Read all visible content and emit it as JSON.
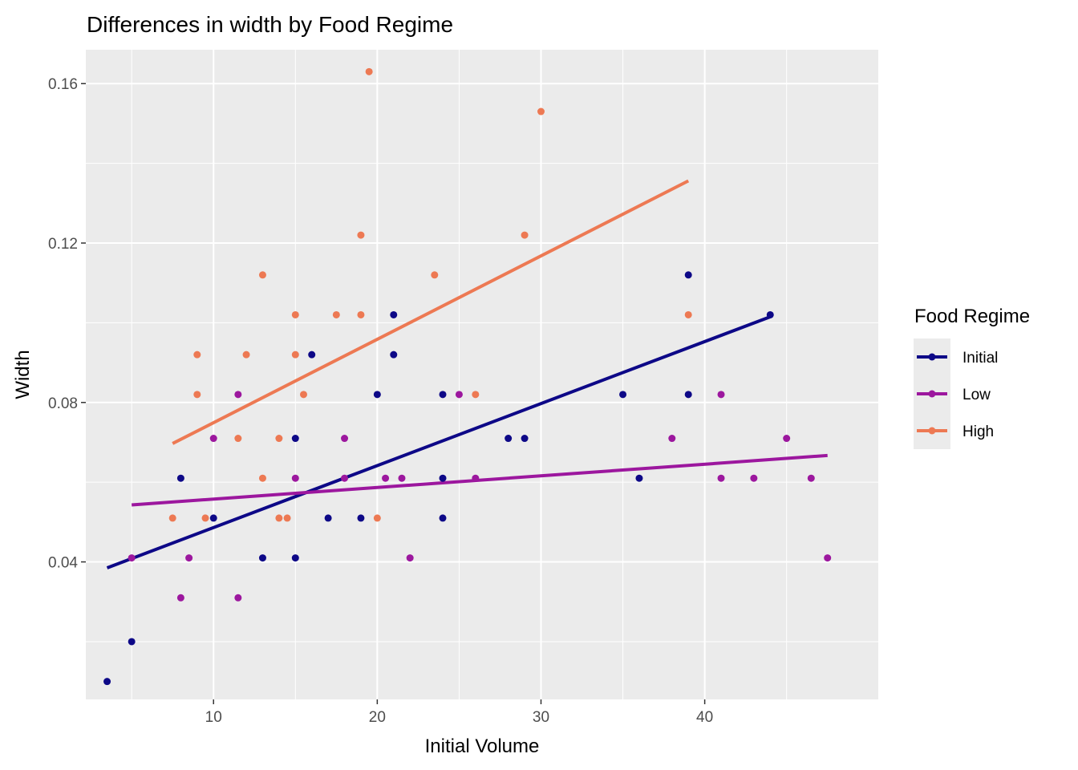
{
  "chart_data": {
    "type": "scatter",
    "title": "Differences in width by Food Regime",
    "xlabel": "Initial Volume",
    "ylabel": "Width",
    "xlim": [
      2.2,
      50.6
    ],
    "ylim": [
      0.0055,
      0.1685
    ],
    "x_ticks": [
      10,
      20,
      30,
      40
    ],
    "x_tick_labels": [
      "10",
      "20",
      "30",
      "40"
    ],
    "y_ticks": [
      0.04,
      0.08,
      0.12,
      0.16
    ],
    "y_tick_labels": [
      "0.04",
      "0.08",
      "0.12",
      "0.16"
    ],
    "grid": true,
    "legend": {
      "title": "Food Regime",
      "position": "right"
    },
    "series": [
      {
        "name": "Initial",
        "color": "#0d0887",
        "points": [
          {
            "x": 3.5,
            "y": 0.01
          },
          {
            "x": 5.0,
            "y": 0.02
          },
          {
            "x": 8.0,
            "y": 0.061
          },
          {
            "x": 10.0,
            "y": 0.051
          },
          {
            "x": 13.0,
            "y": 0.041
          },
          {
            "x": 15.0,
            "y": 0.071
          },
          {
            "x": 15.0,
            "y": 0.041
          },
          {
            "x": 16.0,
            "y": 0.092
          },
          {
            "x": 17.0,
            "y": 0.051
          },
          {
            "x": 19.0,
            "y": 0.051
          },
          {
            "x": 20.0,
            "y": 0.082
          },
          {
            "x": 21.0,
            "y": 0.102
          },
          {
            "x": 21.0,
            "y": 0.092
          },
          {
            "x": 24.0,
            "y": 0.082
          },
          {
            "x": 24.0,
            "y": 0.061
          },
          {
            "x": 24.0,
            "y": 0.051
          },
          {
            "x": 28.0,
            "y": 0.071
          },
          {
            "x": 29.0,
            "y": 0.071
          },
          {
            "x": 35.0,
            "y": 0.082
          },
          {
            "x": 36.0,
            "y": 0.061
          },
          {
            "x": 39.0,
            "y": 0.112
          },
          {
            "x": 39.0,
            "y": 0.082
          },
          {
            "x": 44.0,
            "y": 0.102
          }
        ],
        "fit": {
          "x": [
            3.5,
            44.0
          ],
          "y": [
            0.0385,
            0.1015
          ]
        }
      },
      {
        "name": "Low",
        "color": "#9c179e",
        "points": [
          {
            "x": 5.0,
            "y": 0.041
          },
          {
            "x": 8.0,
            "y": 0.031
          },
          {
            "x": 8.5,
            "y": 0.041
          },
          {
            "x": 10.0,
            "y": 0.071
          },
          {
            "x": 11.5,
            "y": 0.082
          },
          {
            "x": 11.5,
            "y": 0.031
          },
          {
            "x": 15.0,
            "y": 0.061
          },
          {
            "x": 18.0,
            "y": 0.071
          },
          {
            "x": 18.0,
            "y": 0.061
          },
          {
            "x": 20.5,
            "y": 0.061
          },
          {
            "x": 21.5,
            "y": 0.061
          },
          {
            "x": 22.0,
            "y": 0.041
          },
          {
            "x": 25.0,
            "y": 0.082
          },
          {
            "x": 26.0,
            "y": 0.061
          },
          {
            "x": 38.0,
            "y": 0.071
          },
          {
            "x": 41.0,
            "y": 0.082
          },
          {
            "x": 41.0,
            "y": 0.061
          },
          {
            "x": 43.0,
            "y": 0.061
          },
          {
            "x": 45.0,
            "y": 0.071
          },
          {
            "x": 46.5,
            "y": 0.061
          },
          {
            "x": 47.5,
            "y": 0.041
          }
        ],
        "fit": {
          "x": [
            5.0,
            47.5
          ],
          "y": [
            0.0543,
            0.0667
          ]
        }
      },
      {
        "name": "High",
        "color": "#ed7953",
        "points": [
          {
            "x": 7.5,
            "y": 0.051
          },
          {
            "x": 9.0,
            "y": 0.092
          },
          {
            "x": 9.0,
            "y": 0.082
          },
          {
            "x": 9.5,
            "y": 0.051
          },
          {
            "x": 11.5,
            "y": 0.071
          },
          {
            "x": 12.0,
            "y": 0.092
          },
          {
            "x": 13.0,
            "y": 0.112
          },
          {
            "x": 13.0,
            "y": 0.061
          },
          {
            "x": 14.0,
            "y": 0.071
          },
          {
            "x": 14.0,
            "y": 0.051
          },
          {
            "x": 14.5,
            "y": 0.051
          },
          {
            "x": 15.0,
            "y": 0.102
          },
          {
            "x": 15.0,
            "y": 0.092
          },
          {
            "x": 15.5,
            "y": 0.082
          },
          {
            "x": 17.5,
            "y": 0.102
          },
          {
            "x": 19.0,
            "y": 0.122
          },
          {
            "x": 19.0,
            "y": 0.102
          },
          {
            "x": 19.5,
            "y": 0.163
          },
          {
            "x": 20.0,
            "y": 0.051
          },
          {
            "x": 23.5,
            "y": 0.112
          },
          {
            "x": 26.0,
            "y": 0.082
          },
          {
            "x": 29.0,
            "y": 0.122
          },
          {
            "x": 30.0,
            "y": 0.153
          },
          {
            "x": 39.0,
            "y": 0.102
          }
        ],
        "fit": {
          "x": [
            7.5,
            39.0
          ],
          "y": [
            0.0697,
            0.1356
          ]
        }
      }
    ]
  }
}
